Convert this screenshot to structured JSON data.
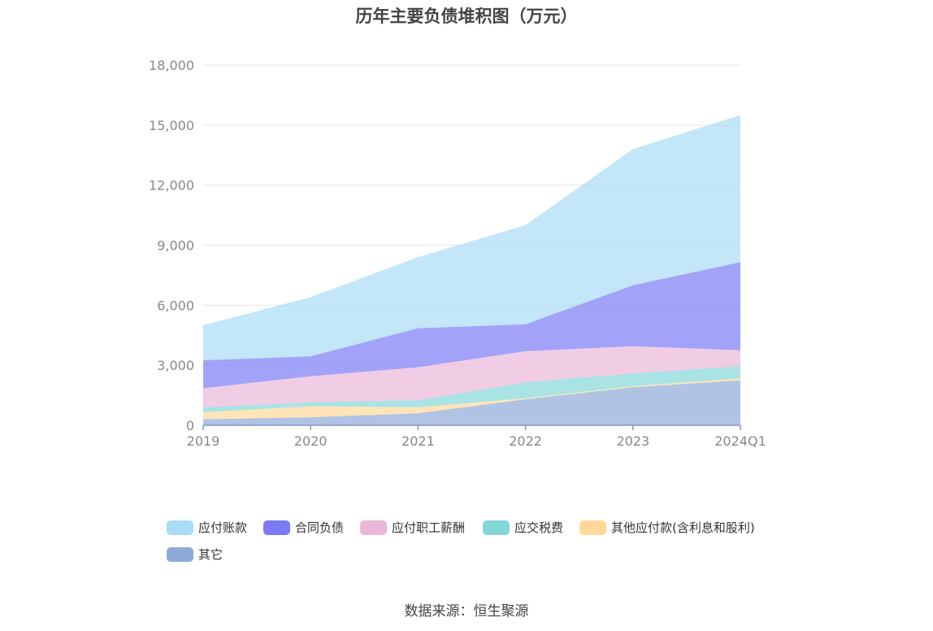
{
  "chart_data": {
    "type": "area",
    "stacked": true,
    "title": "历年主要负债堆积图（万元）",
    "categories": [
      "2019",
      "2020",
      "2021",
      "2022",
      "2023",
      "2024Q1"
    ],
    "ylim": [
      0,
      18000
    ],
    "yticks": [
      "0",
      "3,000",
      "6,000",
      "9,000",
      "12,000",
      "15,000",
      "18,000"
    ],
    "ytick_values": [
      0,
      3000,
      6000,
      9000,
      12000,
      15000,
      18000
    ],
    "grid": true,
    "legend_position": "bottom",
    "series": [
      {
        "name": "其它",
        "color": "#8eaad8",
        "values": [
          300,
          400,
          600,
          1300,
          1900,
          2250
        ]
      },
      {
        "name": "其他应付款(含利息和股利)",
        "color": "#ffd89a",
        "values": [
          350,
          550,
          300,
          50,
          50,
          100
        ]
      },
      {
        "name": "应交税费",
        "color": "#84d7d8",
        "values": [
          250,
          200,
          350,
          800,
          650,
          600
        ]
      },
      {
        "name": "应付职工薪酬",
        "color": "#eab6da",
        "values": [
          950,
          1300,
          1650,
          1550,
          1350,
          800
        ]
      },
      {
        "name": "合同负债",
        "color": "#7b7cf5",
        "values": [
          1400,
          1000,
          1950,
          1350,
          3050,
          4400
        ]
      },
      {
        "name": "应付账款",
        "color": "#a9dcf7",
        "values": [
          1750,
          2950,
          3550,
          4950,
          6800,
          7350
        ]
      }
    ]
  },
  "legend": {
    "items": [
      {
        "label": "应付账款",
        "color": "#a9dcf7"
      },
      {
        "label": "合同负债",
        "color": "#7b7cf5"
      },
      {
        "label": "应付职工薪酬",
        "color": "#eab6da"
      },
      {
        "label": "应交税费",
        "color": "#84d7d8"
      },
      {
        "label": "其他应付款(含利息和股利)",
        "color": "#ffd89a"
      },
      {
        "label": "其它",
        "color": "#8eaad8"
      }
    ]
  },
  "source": "数据来源：恒生聚源"
}
